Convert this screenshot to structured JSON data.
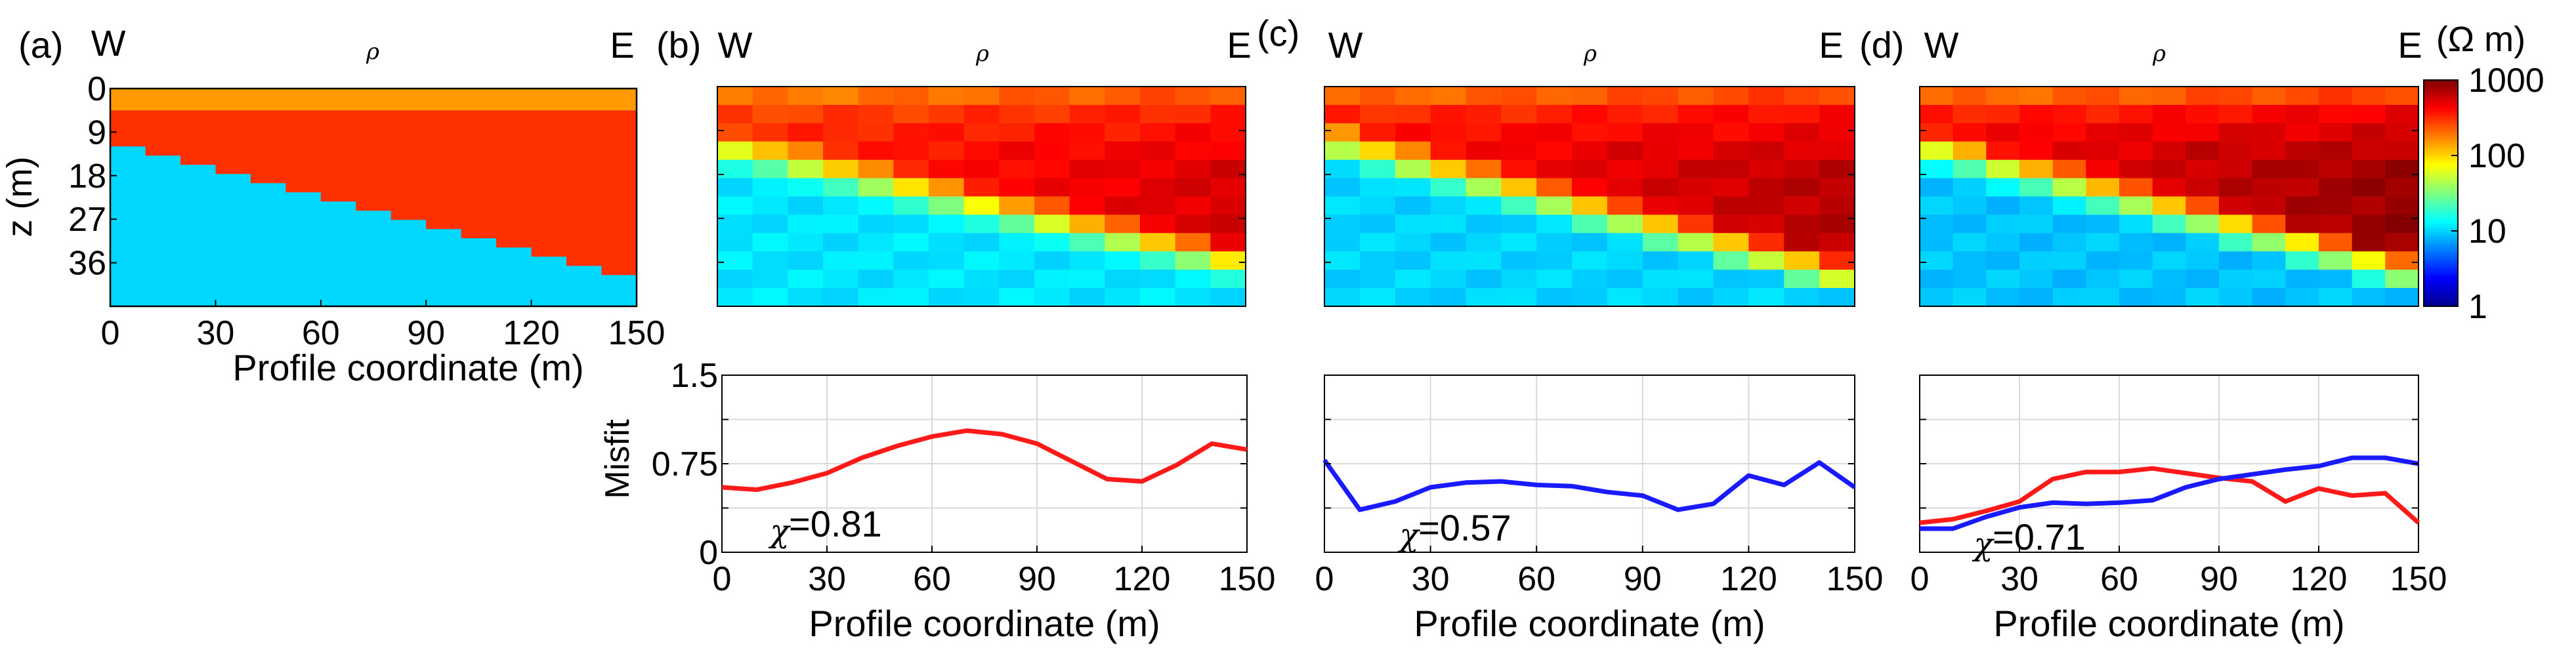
{
  "colors": {
    "overburden": "#ff9a00",
    "resistive_layer": "#ff3000",
    "conductive_basement": "#00d8ff",
    "misfit_red": "#ff1a1a",
    "misfit_blue": "#1a1aff"
  },
  "colorbar": {
    "unit": "(Ω m)",
    "ticks": [
      "1000",
      "100",
      "10",
      "1"
    ],
    "tick_values": [
      1000,
      100,
      10,
      1
    ]
  },
  "chart_data": [
    {
      "panel": "(a)",
      "type": "heatmap",
      "title": "ρ",
      "west_label": "W",
      "east_label": "E",
      "xlabel": "Profile coordinate (m)",
      "ylabel": "z (m)",
      "xlim": [
        0,
        150
      ],
      "ylim": [
        45,
        0
      ],
      "x_ticks": [
        "0",
        "30",
        "60",
        "90",
        "120",
        "150"
      ],
      "y_ticks": [
        "0",
        "9",
        "18",
        "27",
        "36"
      ],
      "layers": [
        {
          "name": "overburden",
          "top_m": 0,
          "bottom_m": 4.5,
          "resistivity_ohm_m": 200
        },
        {
          "name": "resistive layer",
          "resistivity_ohm_m": 500
        },
        {
          "name": "conductive basement",
          "resistivity_ohm_m": 10
        }
      ],
      "interface_x": [
        0,
        150
      ],
      "interface_depth_m": [
        11,
        39.5
      ]
    },
    {
      "panel": "(b)",
      "type": "heatmap",
      "title": "ρ",
      "west_label": "W",
      "east_label": "E",
      "xlim": [
        0,
        150
      ],
      "ylim": [
        45,
        0
      ],
      "grid_cols": 15,
      "grid_rows": 12,
      "interface_depth_start_m": 9,
      "interface_depth_end_m": 33,
      "log10_resistivity_top": 2.25,
      "log10_resistivity_peak": 2.75,
      "log10_resistivity_bottom": 1.05
    },
    {
      "panel": "(c)",
      "type": "heatmap",
      "title": "ρ",
      "west_label": "W",
      "east_label": "E",
      "xlim": [
        0,
        150
      ],
      "ylim": [
        45,
        0
      ],
      "grid_cols": 15,
      "grid_rows": 12,
      "interface_depth_start_m": 8,
      "interface_depth_end_m": 36,
      "log10_resistivity_top": 2.3,
      "log10_resistivity_peak": 2.85,
      "log10_resistivity_bottom": 1.0
    },
    {
      "panel": "(d)",
      "type": "heatmap",
      "title": "ρ",
      "west_label": "W",
      "east_label": "E",
      "xlim": [
        0,
        150
      ],
      "ylim": [
        45,
        0
      ],
      "grid_cols": 15,
      "grid_rows": 12,
      "interface_depth_start_m": 9,
      "interface_depth_end_m": 35,
      "log10_resistivity_top": 2.3,
      "log10_resistivity_peak": 2.95,
      "log10_resistivity_bottom": 0.95
    },
    {
      "panel": "(b) misfit",
      "type": "line",
      "xlabel": "Profile coordinate (m)",
      "ylabel": "Misfit",
      "xlim": [
        0,
        150
      ],
      "ylim": [
        0,
        1.5
      ],
      "x_ticks": [
        "0",
        "30",
        "60",
        "90",
        "120",
        "150"
      ],
      "y_ticks": [
        "0",
        "0.75",
        "1.5"
      ],
      "annotation": "=0.81",
      "series": [
        {
          "name": "red",
          "color": "#ff1a1a",
          "x": [
            0,
            10,
            20,
            30,
            40,
            50,
            60,
            70,
            80,
            90,
            100,
            110,
            120,
            130,
            140,
            150
          ],
          "values": [
            0.55,
            0.53,
            0.59,
            0.67,
            0.8,
            0.9,
            0.98,
            1.03,
            1.0,
            0.92,
            0.77,
            0.62,
            0.6,
            0.74,
            0.92,
            0.87
          ]
        }
      ]
    },
    {
      "panel": "(c) misfit",
      "type": "line",
      "xlabel": "Profile coordinate (m)",
      "xlim": [
        0,
        150
      ],
      "ylim": [
        0,
        1.5
      ],
      "x_ticks": [
        "0",
        "30",
        "60",
        "90",
        "120",
        "150"
      ],
      "annotation": "=0.57",
      "series": [
        {
          "name": "blue",
          "color": "#1a1aff",
          "x": [
            0,
            10,
            20,
            30,
            40,
            50,
            60,
            70,
            80,
            90,
            100,
            110,
            120,
            130,
            140,
            150
          ],
          "values": [
            0.78,
            0.36,
            0.43,
            0.55,
            0.59,
            0.6,
            0.57,
            0.56,
            0.51,
            0.48,
            0.36,
            0.41,
            0.65,
            0.57,
            0.76,
            0.55
          ]
        }
      ]
    },
    {
      "panel": "(d) misfit",
      "type": "line",
      "xlabel": "Profile coordinate (m)",
      "xlim": [
        0,
        150
      ],
      "ylim": [
        0,
        1.5
      ],
      "x_ticks": [
        "0",
        "30",
        "60",
        "90",
        "120",
        "150"
      ],
      "annotation": "=0.71",
      "series": [
        {
          "name": "red",
          "color": "#ff1a1a",
          "x": [
            0,
            10,
            20,
            30,
            40,
            50,
            60,
            70,
            80,
            90,
            100,
            110,
            120,
            130,
            140,
            150
          ],
          "values": [
            0.25,
            0.28,
            0.35,
            0.43,
            0.62,
            0.68,
            0.68,
            0.71,
            0.67,
            0.63,
            0.6,
            0.43,
            0.54,
            0.48,
            0.5,
            0.25
          ]
        },
        {
          "name": "blue",
          "color": "#1a1aff",
          "x": [
            0,
            10,
            20,
            30,
            40,
            50,
            60,
            70,
            80,
            90,
            100,
            110,
            120,
            130,
            140,
            150
          ],
          "values": [
            0.2,
            0.2,
            0.3,
            0.38,
            0.42,
            0.41,
            0.42,
            0.44,
            0.55,
            0.62,
            0.66,
            0.7,
            0.73,
            0.8,
            0.8,
            0.75
          ]
        }
      ]
    }
  ]
}
